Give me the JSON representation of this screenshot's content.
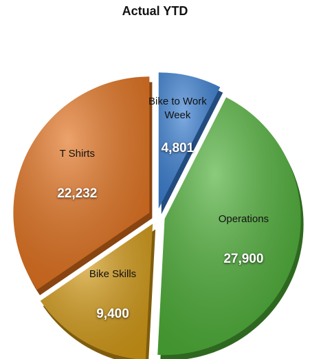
{
  "chart_data": {
    "type": "pie",
    "title": "Actual YTD",
    "categories": [
      "Bike to Work Week",
      "Operations",
      "Bike Skills",
      "T Shirts"
    ],
    "values": [
      4801,
      27900,
      9400,
      22232
    ],
    "value_labels": [
      "4,801",
      "27,900",
      "9,400",
      "22,232"
    ],
    "colors": [
      "#3a7fd2",
      "#4cae36",
      "#d39a16",
      "#e2711d"
    ]
  }
}
